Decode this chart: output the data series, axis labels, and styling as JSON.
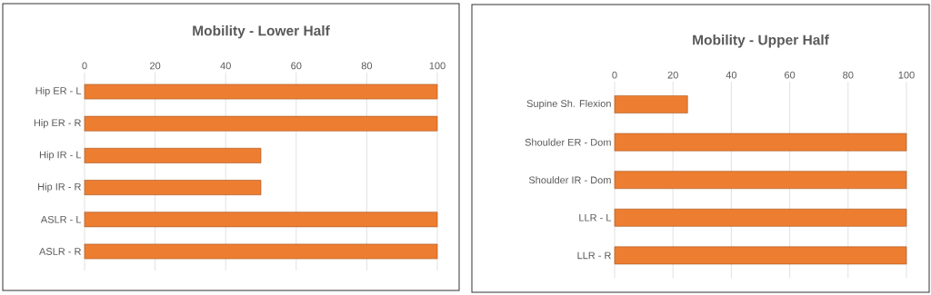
{
  "chart_data": [
    {
      "type": "bar",
      "orientation": "horizontal",
      "title": "Mobility - Lower Half",
      "categories": [
        "Hip ER - L",
        "Hip ER - R",
        "Hip IR - L",
        "Hip IR - R",
        "ASLR - L",
        "ASLR - R"
      ],
      "values": [
        100,
        100,
        50,
        50,
        100,
        100
      ],
      "color": "#ed7d31",
      "xlim": [
        0,
        100
      ],
      "xticks": [
        0,
        20,
        40,
        60,
        80,
        100
      ],
      "grid": "x"
    },
    {
      "type": "bar",
      "orientation": "horizontal",
      "title": "Mobility - Upper Half",
      "categories": [
        "Supine Sh. Flexion",
        "Shoulder ER - Dom",
        "Shoulder IR - Dom",
        "LLR - L",
        "LLR - R"
      ],
      "values": [
        25,
        100,
        100,
        100,
        100
      ],
      "color": "#ed7d31",
      "xlim": [
        0,
        100
      ],
      "xticks": [
        0,
        20,
        40,
        60,
        80,
        100
      ],
      "grid": "x"
    }
  ]
}
